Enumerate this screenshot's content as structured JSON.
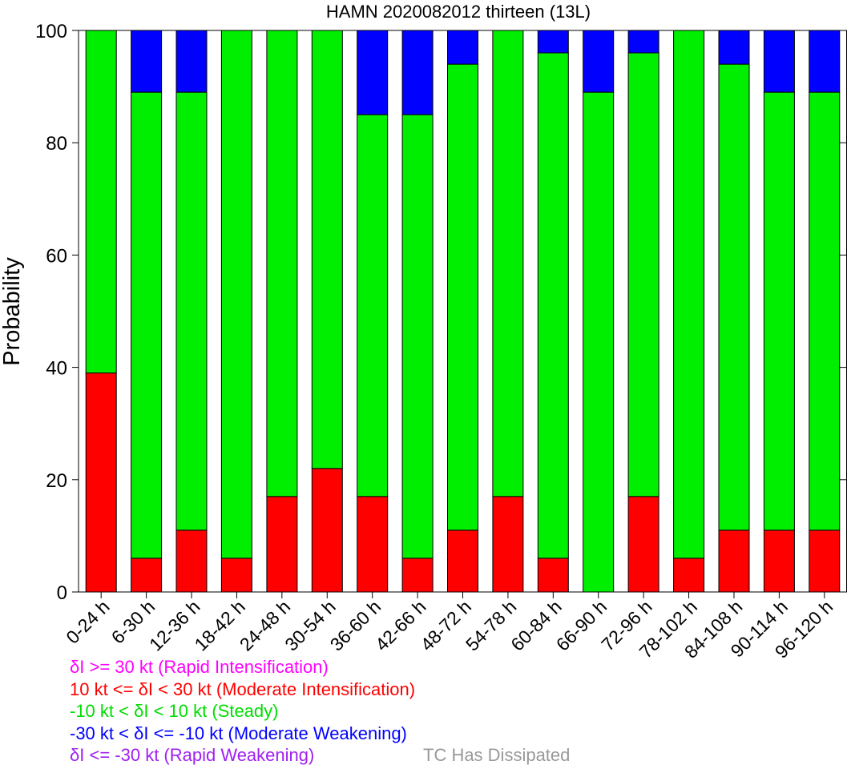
{
  "chart_data": {
    "type": "bar",
    "stacked": true,
    "title": "HAMN 2020082012 thirteen (13L)",
    "xlabel": "",
    "ylabel": "Probability",
    "ylim": [
      0,
      100
    ],
    "yticks": [
      0,
      20,
      40,
      60,
      80,
      100
    ],
    "grid": false,
    "categories": [
      "0-24 h",
      "6-30 h",
      "12-36 h",
      "18-42 h",
      "24-48 h",
      "30-54 h",
      "36-60 h",
      "42-66 h",
      "48-72 h",
      "54-78 h",
      "60-84 h",
      "66-90 h",
      "72-96 h",
      "78-102 h",
      "84-108 h",
      "90-114 h",
      "96-120 h"
    ],
    "series": [
      {
        "name": "Moderate Intensification",
        "color": "#ff0000",
        "values": [
          39,
          6,
          11,
          6,
          17,
          22,
          17,
          6,
          11,
          17,
          6,
          0,
          17,
          6,
          11,
          11,
          11
        ]
      },
      {
        "name": "Steady",
        "color": "#00ee00",
        "values": [
          61,
          83,
          78,
          94,
          83,
          78,
          68,
          79,
          83,
          83,
          90,
          89,
          79,
          94,
          83,
          78,
          78
        ]
      },
      {
        "name": "Moderate Weakening",
        "color": "#0000ff",
        "values": [
          0,
          11,
          11,
          0,
          0,
          0,
          15,
          15,
          6,
          0,
          4,
          11,
          4,
          0,
          6,
          11,
          11
        ]
      }
    ],
    "legend": [
      {
        "text": "δI >= 30 kt (Rapid Intensification)",
        "color": "#ff00ff"
      },
      {
        "text": "10 kt <= δI < 30 kt (Moderate Intensification)",
        "color": "#ff0000"
      },
      {
        "text": "-10 kt < δI < 10 kt (Steady)",
        "color": "#00dd00"
      },
      {
        "text": "-30 kt < δI <= -10 kt (Moderate Weakening)",
        "color": "#0000ff"
      },
      {
        "text": "δI <= -30 kt (Rapid Weakening)",
        "color": "#a020f0"
      }
    ],
    "dissipated_label": {
      "text": "TC Has Dissipated",
      "color": "#999999"
    }
  }
}
